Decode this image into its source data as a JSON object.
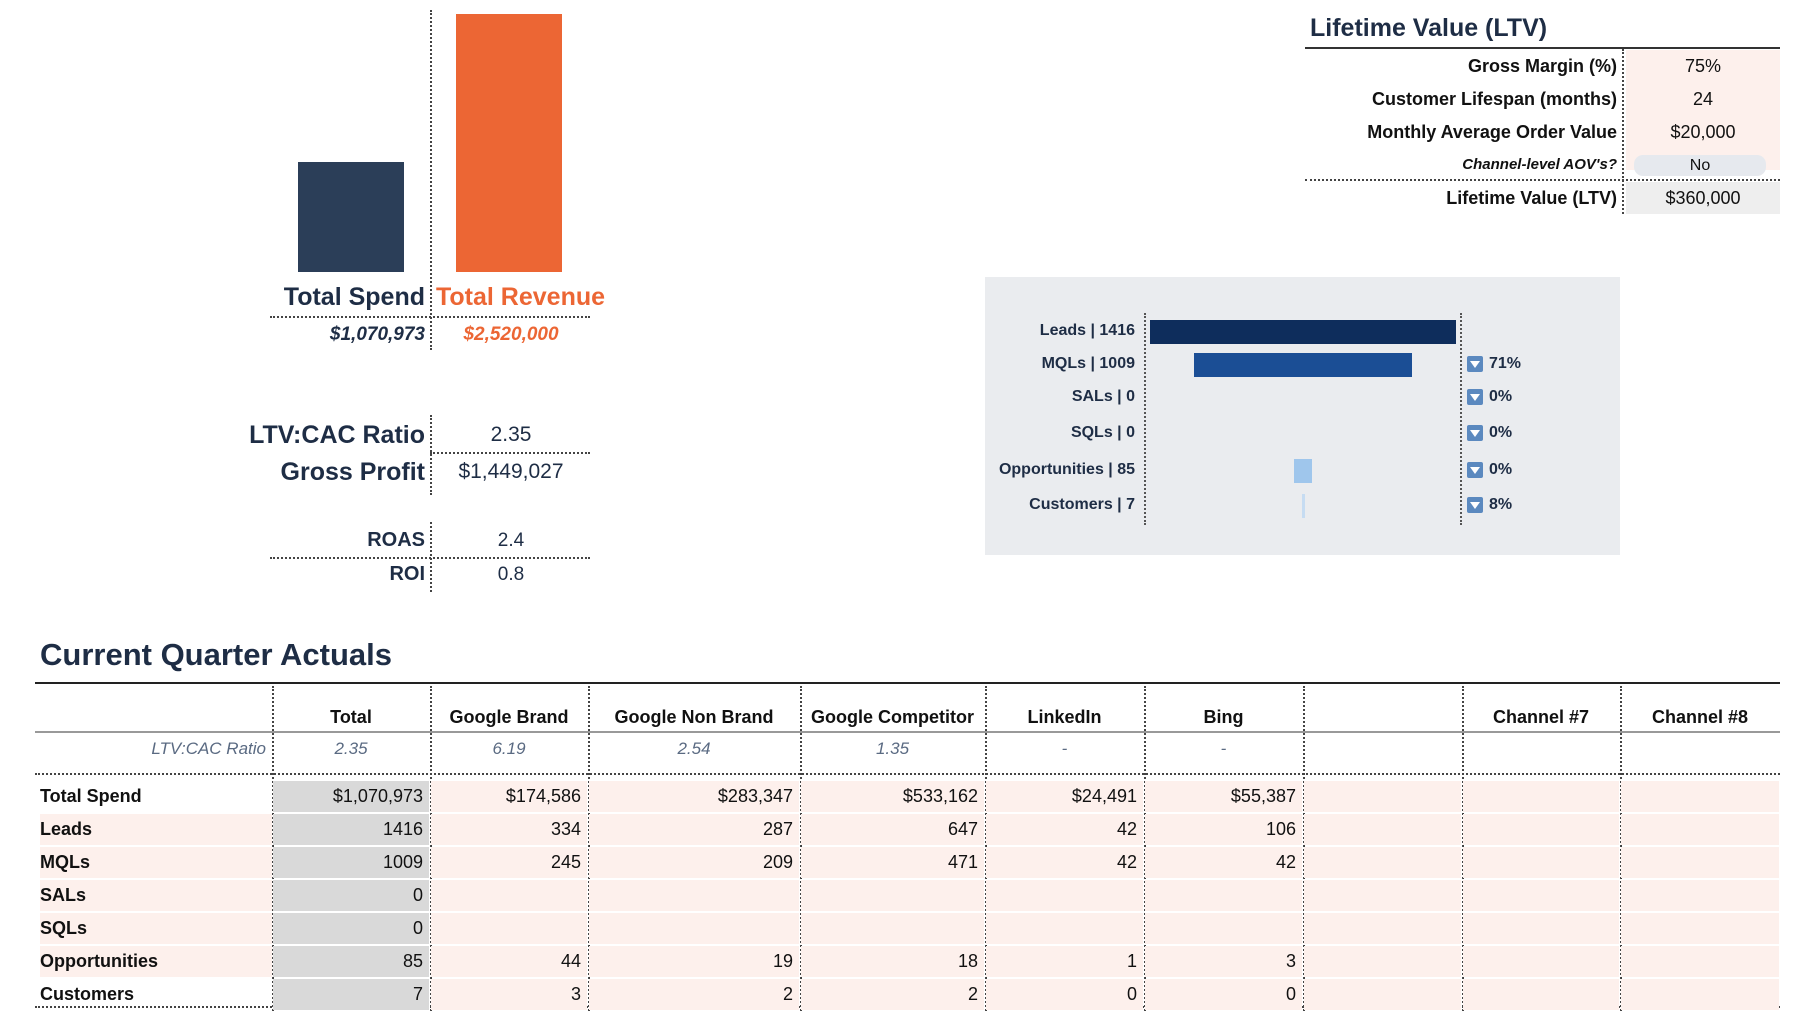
{
  "summary": {
    "total_spend_label": "Total Spend",
    "total_revenue_label": "Total Revenue",
    "total_spend_value": "$1,070,973",
    "total_revenue_value": "$2,520,000",
    "spend_amount": 1070973,
    "revenue_amount": 2520000,
    "spend_color": "#2b3e58",
    "revenue_color": "#ec6634",
    "ltv_cac_label": "LTV:CAC Ratio",
    "ltv_cac_value": "2.35",
    "gross_profit_label": "Gross Profit",
    "gross_profit_value": "$1,449,027",
    "roas_label": "ROAS",
    "roas_value": "2.4",
    "roi_label": "ROI",
    "roi_value": "0.8"
  },
  "ltv": {
    "title": "Lifetime Value (LTV)",
    "rows": [
      {
        "label": "Gross Margin (%)",
        "value": "75%"
      },
      {
        "label": "Customer Lifespan (months)",
        "value": "24"
      },
      {
        "label": "Monthly Average Order Value",
        "value": "$20,000"
      }
    ],
    "channel_aov_label": "Channel-level AOV's?",
    "channel_aov_value": "No",
    "result_label": "Lifetime Value (LTV)",
    "result_value": "$360,000"
  },
  "funnel": {
    "stages": [
      {
        "label": "Leads | 1416",
        "value": 1416,
        "pct": "",
        "color": "#0e2d5c"
      },
      {
        "label": "MQLs | 1009",
        "value": 1009,
        "pct": "71%",
        "color": "#1b4e95"
      },
      {
        "label": "SALs | 0",
        "value": 0,
        "pct": "0%",
        "color": "#2a6cb8"
      },
      {
        "label": "SQLs | 0",
        "value": 0,
        "pct": "0%",
        "color": "#4f8cd0"
      },
      {
        "label": "Opportunities | 85",
        "value": 85,
        "pct": "0%",
        "color": "#9fc6ec"
      },
      {
        "label": "Customers | 7",
        "value": 7,
        "pct": "8%",
        "color": "#c6dcf2"
      }
    ]
  },
  "quarter": {
    "title": "Current Quarter Actuals",
    "columns": [
      "Total",
      "Google Brand",
      "Google Non Brand",
      "Google Competitor",
      "LinkedIn",
      "Bing",
      "",
      "Channel #7",
      "Channel #8"
    ],
    "ratio_label": "LTV:CAC Ratio",
    "ratio_values": [
      "2.35",
      "6.19",
      "2.54",
      "1.35",
      "-",
      "-",
      "",
      "",
      ""
    ],
    "rows": [
      {
        "label": "Total Spend",
        "values": [
          "$1,070,973",
          "$174,586",
          "$283,347",
          "$533,162",
          "$24,491",
          "$55,387",
          "",
          "",
          ""
        ]
      },
      {
        "label": "Leads",
        "values": [
          "1416",
          "334",
          "287",
          "647",
          "42",
          "106",
          "",
          "",
          ""
        ]
      },
      {
        "label": "MQLs",
        "values": [
          "1009",
          "245",
          "209",
          "471",
          "42",
          "42",
          "",
          "",
          ""
        ]
      },
      {
        "label": "SALs",
        "values": [
          "0",
          "",
          "",
          "",
          "",
          "",
          "",
          "",
          ""
        ]
      },
      {
        "label": "SQLs",
        "values": [
          "0",
          "",
          "",
          "",
          "",
          "",
          "",
          "",
          ""
        ]
      },
      {
        "label": "Opportunities",
        "values": [
          "85",
          "44",
          "19",
          "18",
          "1",
          "3",
          "",
          "",
          ""
        ]
      },
      {
        "label": "Customers",
        "values": [
          "7",
          "3",
          "2",
          "2",
          "0",
          "0",
          "",
          "",
          ""
        ]
      }
    ]
  }
}
